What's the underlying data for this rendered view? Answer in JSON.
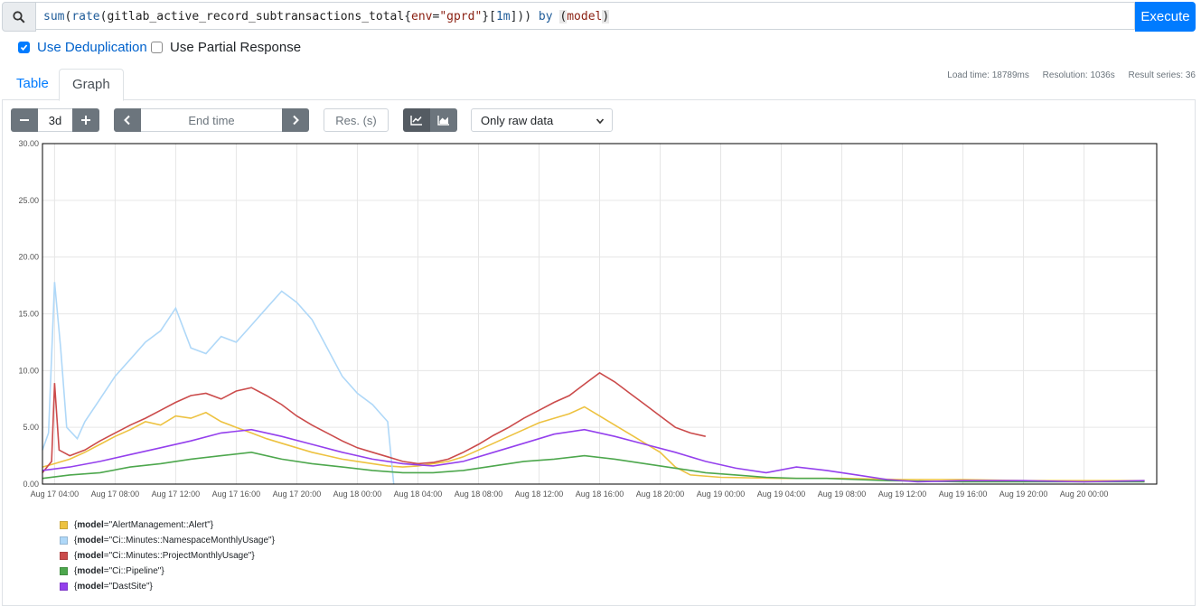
{
  "query": {
    "fn1": "sum",
    "fn2": "rate",
    "metric": "gitlab_active_record_subtransactions_total",
    "label_key": "env",
    "label_value": "\"gprd\"",
    "range": "1m",
    "by_kw": "by",
    "group_label": "model",
    "execute_label": "Execute"
  },
  "options": {
    "dedup_label": "Use Deduplication",
    "dedup_checked": true,
    "partial_label": "Use Partial Response",
    "partial_checked": false
  },
  "tabs": [
    {
      "label": "Table",
      "active": false
    },
    {
      "label": "Graph",
      "active": true
    }
  ],
  "stats": {
    "load_time": "Load time: 18789ms",
    "resolution": "Resolution: 1036s",
    "result_series": "Result series: 36"
  },
  "controls": {
    "range_value": "3d",
    "end_time_placeholder": "End time",
    "resolution_placeholder": "Res. (s)",
    "downsampling_selected": "Only raw data"
  },
  "icons": {
    "search": "search-icon",
    "minus": "minus-icon",
    "plus": "plus-icon",
    "prev": "chevron-left-icon",
    "next": "chevron-right-icon",
    "line_stack": "line-chart-icon",
    "area_stack": "area-chart-icon",
    "select": "chevron-down-icon"
  },
  "chart_data": {
    "type": "line",
    "y_ticks": [
      "30.00",
      "25.00",
      "20.00",
      "15.00",
      "10.00",
      "5.00",
      "0.00"
    ],
    "ylim": [
      0,
      30
    ],
    "x_ticks": [
      "Aug 17 04:00",
      "Aug 17 08:00",
      "Aug 17 12:00",
      "Aug 17 16:00",
      "Aug 17 20:00",
      "Aug 18 00:00",
      "Aug 18 04:00",
      "Aug 18 08:00",
      "Aug 18 12:00",
      "Aug 18 16:00",
      "Aug 18 20:00",
      "Aug 19 00:00",
      "Aug 19 04:00",
      "Aug 19 08:00",
      "Aug 19 12:00",
      "Aug 19 16:00",
      "Aug 19 20:00",
      "Aug 20 00:00"
    ],
    "x_hours": [
      0,
      4,
      8,
      12,
      16,
      20,
      24,
      28,
      32,
      36,
      40,
      44,
      48,
      52,
      56,
      60,
      64,
      68
    ],
    "x_range_hours": [
      -0.8,
      72.8
    ],
    "grid": true,
    "series": [
      {
        "name": "{model=\"AlertManagement::Alert\"}",
        "label_key": "model",
        "label_value": "\"AlertManagement::Alert\"",
        "color": "#edc240",
        "points": [
          [
            -0.8,
            1.5
          ],
          [
            0,
            1.8
          ],
          [
            1,
            2.2
          ],
          [
            2,
            2.8
          ],
          [
            3,
            3.5
          ],
          [
            4,
            4.2
          ],
          [
            5,
            4.8
          ],
          [
            6,
            5.5
          ],
          [
            7,
            5.2
          ],
          [
            8,
            6.0
          ],
          [
            9,
            5.8
          ],
          [
            10,
            6.3
          ],
          [
            11,
            5.5
          ],
          [
            12,
            5.0
          ],
          [
            13,
            4.5
          ],
          [
            14,
            4.0
          ],
          [
            15,
            3.6
          ],
          [
            16,
            3.2
          ],
          [
            17,
            2.8
          ],
          [
            18,
            2.5
          ],
          [
            19,
            2.2
          ],
          [
            20,
            2.0
          ],
          [
            21,
            1.8
          ],
          [
            22,
            1.6
          ],
          [
            23,
            1.5
          ],
          [
            24,
            1.6
          ],
          [
            25,
            1.8
          ],
          [
            26,
            2.0
          ],
          [
            27,
            2.4
          ],
          [
            28,
            3.0
          ],
          [
            29,
            3.6
          ],
          [
            30,
            4.2
          ],
          [
            31,
            4.8
          ],
          [
            32,
            5.4
          ],
          [
            33,
            5.8
          ],
          [
            34,
            6.2
          ],
          [
            35,
            6.8
          ],
          [
            36,
            6.0
          ],
          [
            37,
            5.2
          ],
          [
            38,
            4.4
          ],
          [
            39,
            3.6
          ],
          [
            40,
            2.8
          ],
          [
            41,
            1.5
          ],
          [
            42,
            0.8
          ],
          [
            44,
            0.6
          ],
          [
            48,
            0.5
          ],
          [
            52,
            0.5
          ],
          [
            56,
            0.4
          ],
          [
            60,
            0.4
          ],
          [
            64,
            0.3
          ],
          [
            68,
            0.3
          ],
          [
            72,
            0.3
          ]
        ]
      },
      {
        "name": "{model=\"Ci::Minutes::NamespaceMonthlyUsage\"}",
        "label_key": "model",
        "label_value": "\"Ci::Minutes::NamespaceMonthlyUsage\"",
        "color": "#afd8f8",
        "points": [
          [
            -0.8,
            3.0
          ],
          [
            -0.4,
            4.5
          ],
          [
            0,
            17.8
          ],
          [
            0.4,
            12.0
          ],
          [
            0.8,
            5.0
          ],
          [
            1.5,
            4.0
          ],
          [
            2,
            5.5
          ],
          [
            3,
            7.5
          ],
          [
            4,
            9.5
          ],
          [
            5,
            11.0
          ],
          [
            6,
            12.5
          ],
          [
            7,
            13.5
          ],
          [
            8,
            15.5
          ],
          [
            9,
            12.0
          ],
          [
            10,
            11.5
          ],
          [
            11,
            13.0
          ],
          [
            12,
            12.5
          ],
          [
            13,
            14.0
          ],
          [
            14,
            15.5
          ],
          [
            15,
            17.0
          ],
          [
            16,
            16.0
          ],
          [
            17,
            14.5
          ],
          [
            18,
            12.0
          ],
          [
            19,
            9.5
          ],
          [
            20,
            8.0
          ],
          [
            21,
            7.0
          ],
          [
            22,
            5.5
          ],
          [
            22.4,
            0
          ]
        ]
      },
      {
        "name": "{model=\"Ci::Minutes::ProjectMonthlyUsage\"}",
        "label_key": "model",
        "label_value": "\"Ci::Minutes::ProjectMonthlyUsage\"",
        "color": "#cb4b4b",
        "points": [
          [
            -0.8,
            1.0
          ],
          [
            -0.2,
            2.0
          ],
          [
            0,
            8.9
          ],
          [
            0.3,
            3.0
          ],
          [
            1,
            2.5
          ],
          [
            2,
            3.0
          ],
          [
            3,
            3.8
          ],
          [
            4,
            4.5
          ],
          [
            5,
            5.2
          ],
          [
            6,
            5.8
          ],
          [
            7,
            6.5
          ],
          [
            8,
            7.2
          ],
          [
            9,
            7.8
          ],
          [
            10,
            8.0
          ],
          [
            11,
            7.5
          ],
          [
            12,
            8.2
          ],
          [
            13,
            8.5
          ],
          [
            14,
            7.8
          ],
          [
            15,
            7.0
          ],
          [
            16,
            6.0
          ],
          [
            17,
            5.2
          ],
          [
            18,
            4.5
          ],
          [
            19,
            3.8
          ],
          [
            20,
            3.2
          ],
          [
            21,
            2.8
          ],
          [
            22,
            2.4
          ],
          [
            23,
            2.0
          ],
          [
            24,
            1.8
          ],
          [
            25,
            1.9
          ],
          [
            26,
            2.2
          ],
          [
            27,
            2.8
          ],
          [
            28,
            3.5
          ],
          [
            29,
            4.3
          ],
          [
            30,
            5.0
          ],
          [
            31,
            5.8
          ],
          [
            32,
            6.5
          ],
          [
            33,
            7.2
          ],
          [
            34,
            7.8
          ],
          [
            35,
            8.8
          ],
          [
            36,
            9.8
          ],
          [
            37,
            9.0
          ],
          [
            38,
            8.0
          ],
          [
            39,
            7.0
          ],
          [
            40,
            6.0
          ],
          [
            41,
            5.0
          ],
          [
            42,
            4.5
          ],
          [
            43,
            4.2
          ]
        ]
      },
      {
        "name": "{model=\"Ci::Pipeline\"}",
        "label_key": "model",
        "label_value": "\"Ci::Pipeline\"",
        "color": "#4da74d",
        "points": [
          [
            -0.8,
            0.5
          ],
          [
            1,
            0.8
          ],
          [
            3,
            1.0
          ],
          [
            5,
            1.5
          ],
          [
            7,
            1.8
          ],
          [
            9,
            2.2
          ],
          [
            11,
            2.5
          ],
          [
            13,
            2.8
          ],
          [
            15,
            2.2
          ],
          [
            17,
            1.8
          ],
          [
            19,
            1.5
          ],
          [
            21,
            1.2
          ],
          [
            23,
            1.0
          ],
          [
            25,
            1.0
          ],
          [
            27,
            1.2
          ],
          [
            29,
            1.6
          ],
          [
            31,
            2.0
          ],
          [
            33,
            2.2
          ],
          [
            35,
            2.5
          ],
          [
            37,
            2.2
          ],
          [
            39,
            1.8
          ],
          [
            41,
            1.4
          ],
          [
            43,
            1.0
          ],
          [
            45,
            0.8
          ],
          [
            47,
            0.6
          ],
          [
            49,
            0.5
          ],
          [
            51,
            0.5
          ],
          [
            53,
            0.4
          ],
          [
            55,
            0.3
          ],
          [
            60,
            0.2
          ],
          [
            66,
            0.2
          ],
          [
            72,
            0.2
          ]
        ]
      },
      {
        "name": "{model=\"DastSite\"}",
        "label_key": "model",
        "label_value": "\"DastSite\"",
        "color": "#9440ed",
        "points": [
          [
            -0.8,
            1.2
          ],
          [
            1,
            1.5
          ],
          [
            3,
            2.0
          ],
          [
            5,
            2.6
          ],
          [
            7,
            3.2
          ],
          [
            9,
            3.8
          ],
          [
            11,
            4.5
          ],
          [
            13,
            4.8
          ],
          [
            15,
            4.2
          ],
          [
            17,
            3.5
          ],
          [
            19,
            2.8
          ],
          [
            21,
            2.2
          ],
          [
            23,
            1.8
          ],
          [
            25,
            1.6
          ],
          [
            27,
            2.0
          ],
          [
            29,
            2.8
          ],
          [
            31,
            3.6
          ],
          [
            33,
            4.4
          ],
          [
            35,
            4.8
          ],
          [
            37,
            4.2
          ],
          [
            39,
            3.5
          ],
          [
            41,
            2.8
          ],
          [
            43,
            2.0
          ],
          [
            45,
            1.4
          ],
          [
            47,
            1.0
          ],
          [
            49,
            1.5
          ],
          [
            51,
            1.2
          ],
          [
            53,
            0.8
          ],
          [
            55,
            0.4
          ],
          [
            57,
            0.2
          ],
          [
            60,
            0.3
          ],
          [
            64,
            0.3
          ],
          [
            68,
            0.2
          ],
          [
            72,
            0.3
          ]
        ]
      }
    ]
  }
}
